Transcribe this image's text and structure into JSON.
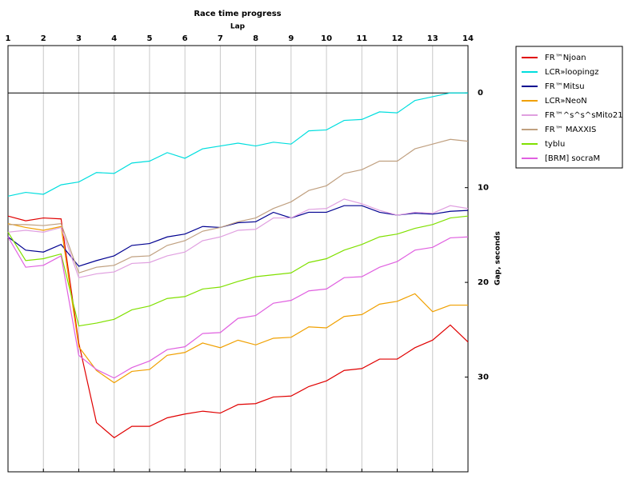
{
  "chart_data": {
    "type": "line",
    "title": "Race time progress",
    "x_label": "Lap",
    "y_label": "Gap, seconds",
    "x": [
      1,
      1.5,
      2,
      2.5,
      3,
      3.5,
      4,
      4.5,
      5,
      5.5,
      6,
      6.5,
      7,
      7.5,
      8,
      8.5,
      9,
      9.5,
      10,
      10.5,
      11,
      11.5,
      12,
      12.5,
      13,
      13.5,
      14
    ],
    "xlim": [
      1,
      14
    ],
    "xticks": [
      1,
      2,
      3,
      4,
      5,
      6,
      7,
      8,
      9,
      10,
      11,
      12,
      13,
      14
    ],
    "ylim": [
      40,
      -5
    ],
    "yticks": [
      0,
      10,
      20,
      30
    ],
    "grid": "x",
    "zero_line": true,
    "legend": "right",
    "series": [
      {
        "name": "FR™Njoan",
        "color": "#e00000",
        "values": [
          13.0,
          13.5,
          13.2,
          13.3,
          26.4,
          34.8,
          36.4,
          35.2,
          35.2,
          34.3,
          33.9,
          33.6,
          33.8,
          32.9,
          32.8,
          32.1,
          32.0,
          31.0,
          30.4,
          29.3,
          29.1,
          28.1,
          28.1,
          26.9,
          26.1,
          24.5,
          26.3
        ]
      },
      {
        "name": "LCR»loopingz",
        "color": "#00dede",
        "values": [
          10.9,
          10.5,
          10.7,
          9.7,
          9.4,
          8.4,
          8.5,
          7.4,
          7.2,
          6.3,
          6.9,
          5.9,
          5.6,
          5.3,
          5.6,
          5.2,
          5.4,
          4.0,
          3.9,
          2.9,
          2.8,
          2.0,
          2.1,
          0.8,
          0.4,
          0,
          0
        ]
      },
      {
        "name": "FR™Mitsu",
        "color": "#000090",
        "values": [
          15.2,
          16.6,
          16.8,
          16.0,
          18.3,
          17.7,
          17.2,
          16.1,
          15.9,
          15.2,
          14.9,
          14.1,
          14.2,
          13.7,
          13.6,
          12.6,
          13.2,
          12.6,
          12.6,
          11.9,
          11.9,
          12.6,
          12.9,
          12.7,
          12.8,
          12.5,
          12.4
        ]
      },
      {
        "name": "LCR»NeoN",
        "color": "#f0a000",
        "values": [
          13.8,
          14.2,
          14.5,
          14.1,
          26.8,
          29.3,
          30.6,
          29.4,
          29.2,
          27.7,
          27.4,
          26.4,
          26.9,
          26.1,
          26.6,
          25.9,
          25.8,
          24.7,
          24.8,
          23.6,
          23.4,
          22.3,
          22.0,
          21.2,
          23.1,
          22.4,
          22.4
        ]
      },
      {
        "name": "FR™^s^s^sMito21",
        "color": "#e0a0e0",
        "values": [
          14.7,
          14.5,
          14.7,
          14.2,
          19.5,
          19.1,
          18.9,
          18.0,
          17.9,
          17.2,
          16.8,
          15.6,
          15.2,
          14.5,
          14.4,
          13.2,
          13.2,
          12.3,
          12.2,
          11.2,
          11.7,
          12.4,
          12.9,
          12.6,
          12.7,
          11.9,
          12.2
        ]
      },
      {
        "name": "FR™ MAXXIS",
        "color": "#c0a080",
        "values": [
          13.9,
          13.9,
          14.0,
          13.8,
          19.0,
          18.4,
          18.2,
          17.3,
          17.2,
          16.1,
          15.6,
          14.6,
          14.2,
          13.6,
          13.2,
          12.2,
          11.5,
          10.3,
          9.8,
          8.5,
          8.1,
          7.2,
          7.2,
          5.9,
          5.4,
          4.9,
          5.1
        ]
      },
      {
        "name": "tyblu",
        "color": "#80e000",
        "values": [
          14.7,
          17.7,
          17.5,
          17.0,
          24.6,
          24.3,
          23.9,
          22.9,
          22.5,
          21.7,
          21.5,
          20.7,
          20.5,
          19.9,
          19.4,
          19.2,
          19.0,
          17.9,
          17.5,
          16.6,
          16.0,
          15.2,
          14.9,
          14.3,
          13.9,
          13.2,
          13.0
        ]
      },
      {
        "name": "[BRM] socraM",
        "color": "#e060e0",
        "values": [
          15.2,
          18.4,
          18.2,
          17.2,
          27.7,
          29.2,
          30.1,
          29.0,
          28.3,
          27.1,
          26.8,
          25.4,
          25.3,
          23.8,
          23.5,
          22.2,
          21.9,
          20.9,
          20.7,
          19.5,
          19.4,
          18.4,
          17.8,
          16.6,
          16.3,
          15.3,
          15.2
        ]
      }
    ]
  }
}
